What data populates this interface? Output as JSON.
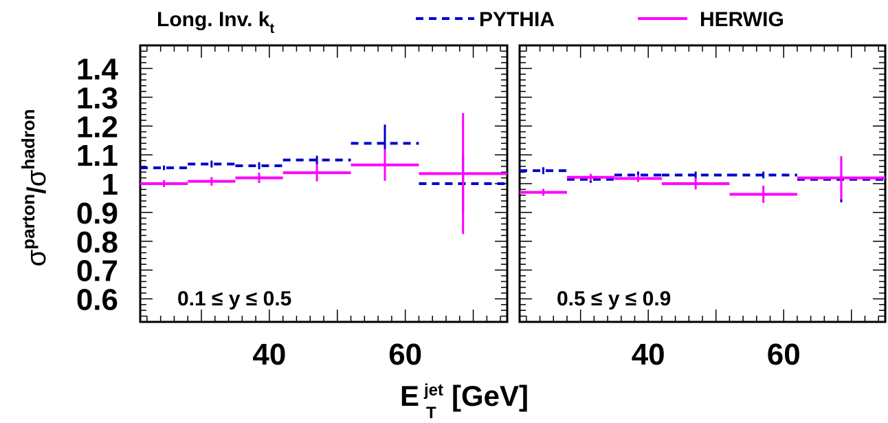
{
  "legend": {
    "scheme_label": "Long. Inv. k",
    "scheme_sub": "t",
    "pythia_label": "PYTHIA",
    "herwig_label": "HERWIG"
  },
  "chart_data": {
    "type": "line",
    "style": "step histogram with error bars",
    "ylabel_parts": {
      "sigma": "σ",
      "num": "parton",
      "slash": "/",
      "den": "hadron"
    },
    "xlabel_parts": {
      "main": "E",
      "sup": "jet",
      "sub": "T",
      "unit": "[GeV]"
    },
    "ylim": [
      0.52,
      1.48
    ],
    "xlim": [
      21,
      75
    ],
    "yticks": [
      0.6,
      0.7,
      0.8,
      0.9,
      1,
      1.1,
      1.2,
      1.3,
      1.4
    ],
    "ytick_labels": [
      "0.6",
      "0.7",
      "0.8",
      "0.9",
      "1",
      "1.1",
      "1.2",
      "1.3",
      "1.4"
    ],
    "xticks": [
      40,
      60
    ],
    "xtick_labels": [
      "40",
      "60"
    ],
    "colors": {
      "pythia": "#0000cc",
      "herwig": "#ff00ff",
      "frame": "#000000"
    },
    "panels": [
      {
        "label": "0.1 ≤ y ≤ 0.5",
        "series": [
          {
            "name": "PYTHIA",
            "style": "dashed",
            "bins": [
              [
                21,
                28
              ],
              [
                28,
                35
              ],
              [
                35,
                42
              ],
              [
                42,
                52
              ],
              [
                52,
                62
              ],
              [
                62,
                75
              ]
            ],
            "values": [
              1.055,
              1.068,
              1.062,
              1.082,
              1.14,
              1.0
            ],
            "errors": [
              0.008,
              0.012,
              0.012,
              0.015,
              0.065,
              0.1
            ]
          },
          {
            "name": "HERWIG",
            "style": "solid",
            "bins": [
              [
                21,
                28
              ],
              [
                28,
                35
              ],
              [
                35,
                42
              ],
              [
                42,
                52
              ],
              [
                52,
                62
              ],
              [
                62,
                75
              ]
            ],
            "values": [
              1.0,
              1.008,
              1.02,
              1.038,
              1.065,
              1.035
            ],
            "errors": [
              0.012,
              0.015,
              0.018,
              0.03,
              0.055,
              0.21
            ]
          }
        ]
      },
      {
        "label": "0.5 ≤ y ≤ 0.9",
        "series": [
          {
            "name": "PYTHIA",
            "style": "dashed",
            "bins": [
              [
                21,
                28
              ],
              [
                28,
                35
              ],
              [
                35,
                42
              ],
              [
                42,
                52
              ],
              [
                52,
                62
              ],
              [
                62,
                75
              ]
            ],
            "values": [
              1.045,
              1.015,
              1.03,
              1.03,
              1.03,
              1.015
            ],
            "errors": [
              0.012,
              0.012,
              0.012,
              0.012,
              0.012,
              0.08
            ]
          },
          {
            "name": "HERWIG",
            "style": "solid",
            "bins": [
              [
                21,
                28
              ],
              [
                28,
                35
              ],
              [
                35,
                42
              ],
              [
                42,
                52
              ],
              [
                52,
                62
              ],
              [
                62,
                75
              ]
            ],
            "values": [
              0.97,
              1.022,
              1.018,
              1.0,
              0.963,
              1.02
            ],
            "errors": [
              0.012,
              0.012,
              0.012,
              0.02,
              0.03,
              0.075
            ]
          }
        ]
      }
    ]
  }
}
